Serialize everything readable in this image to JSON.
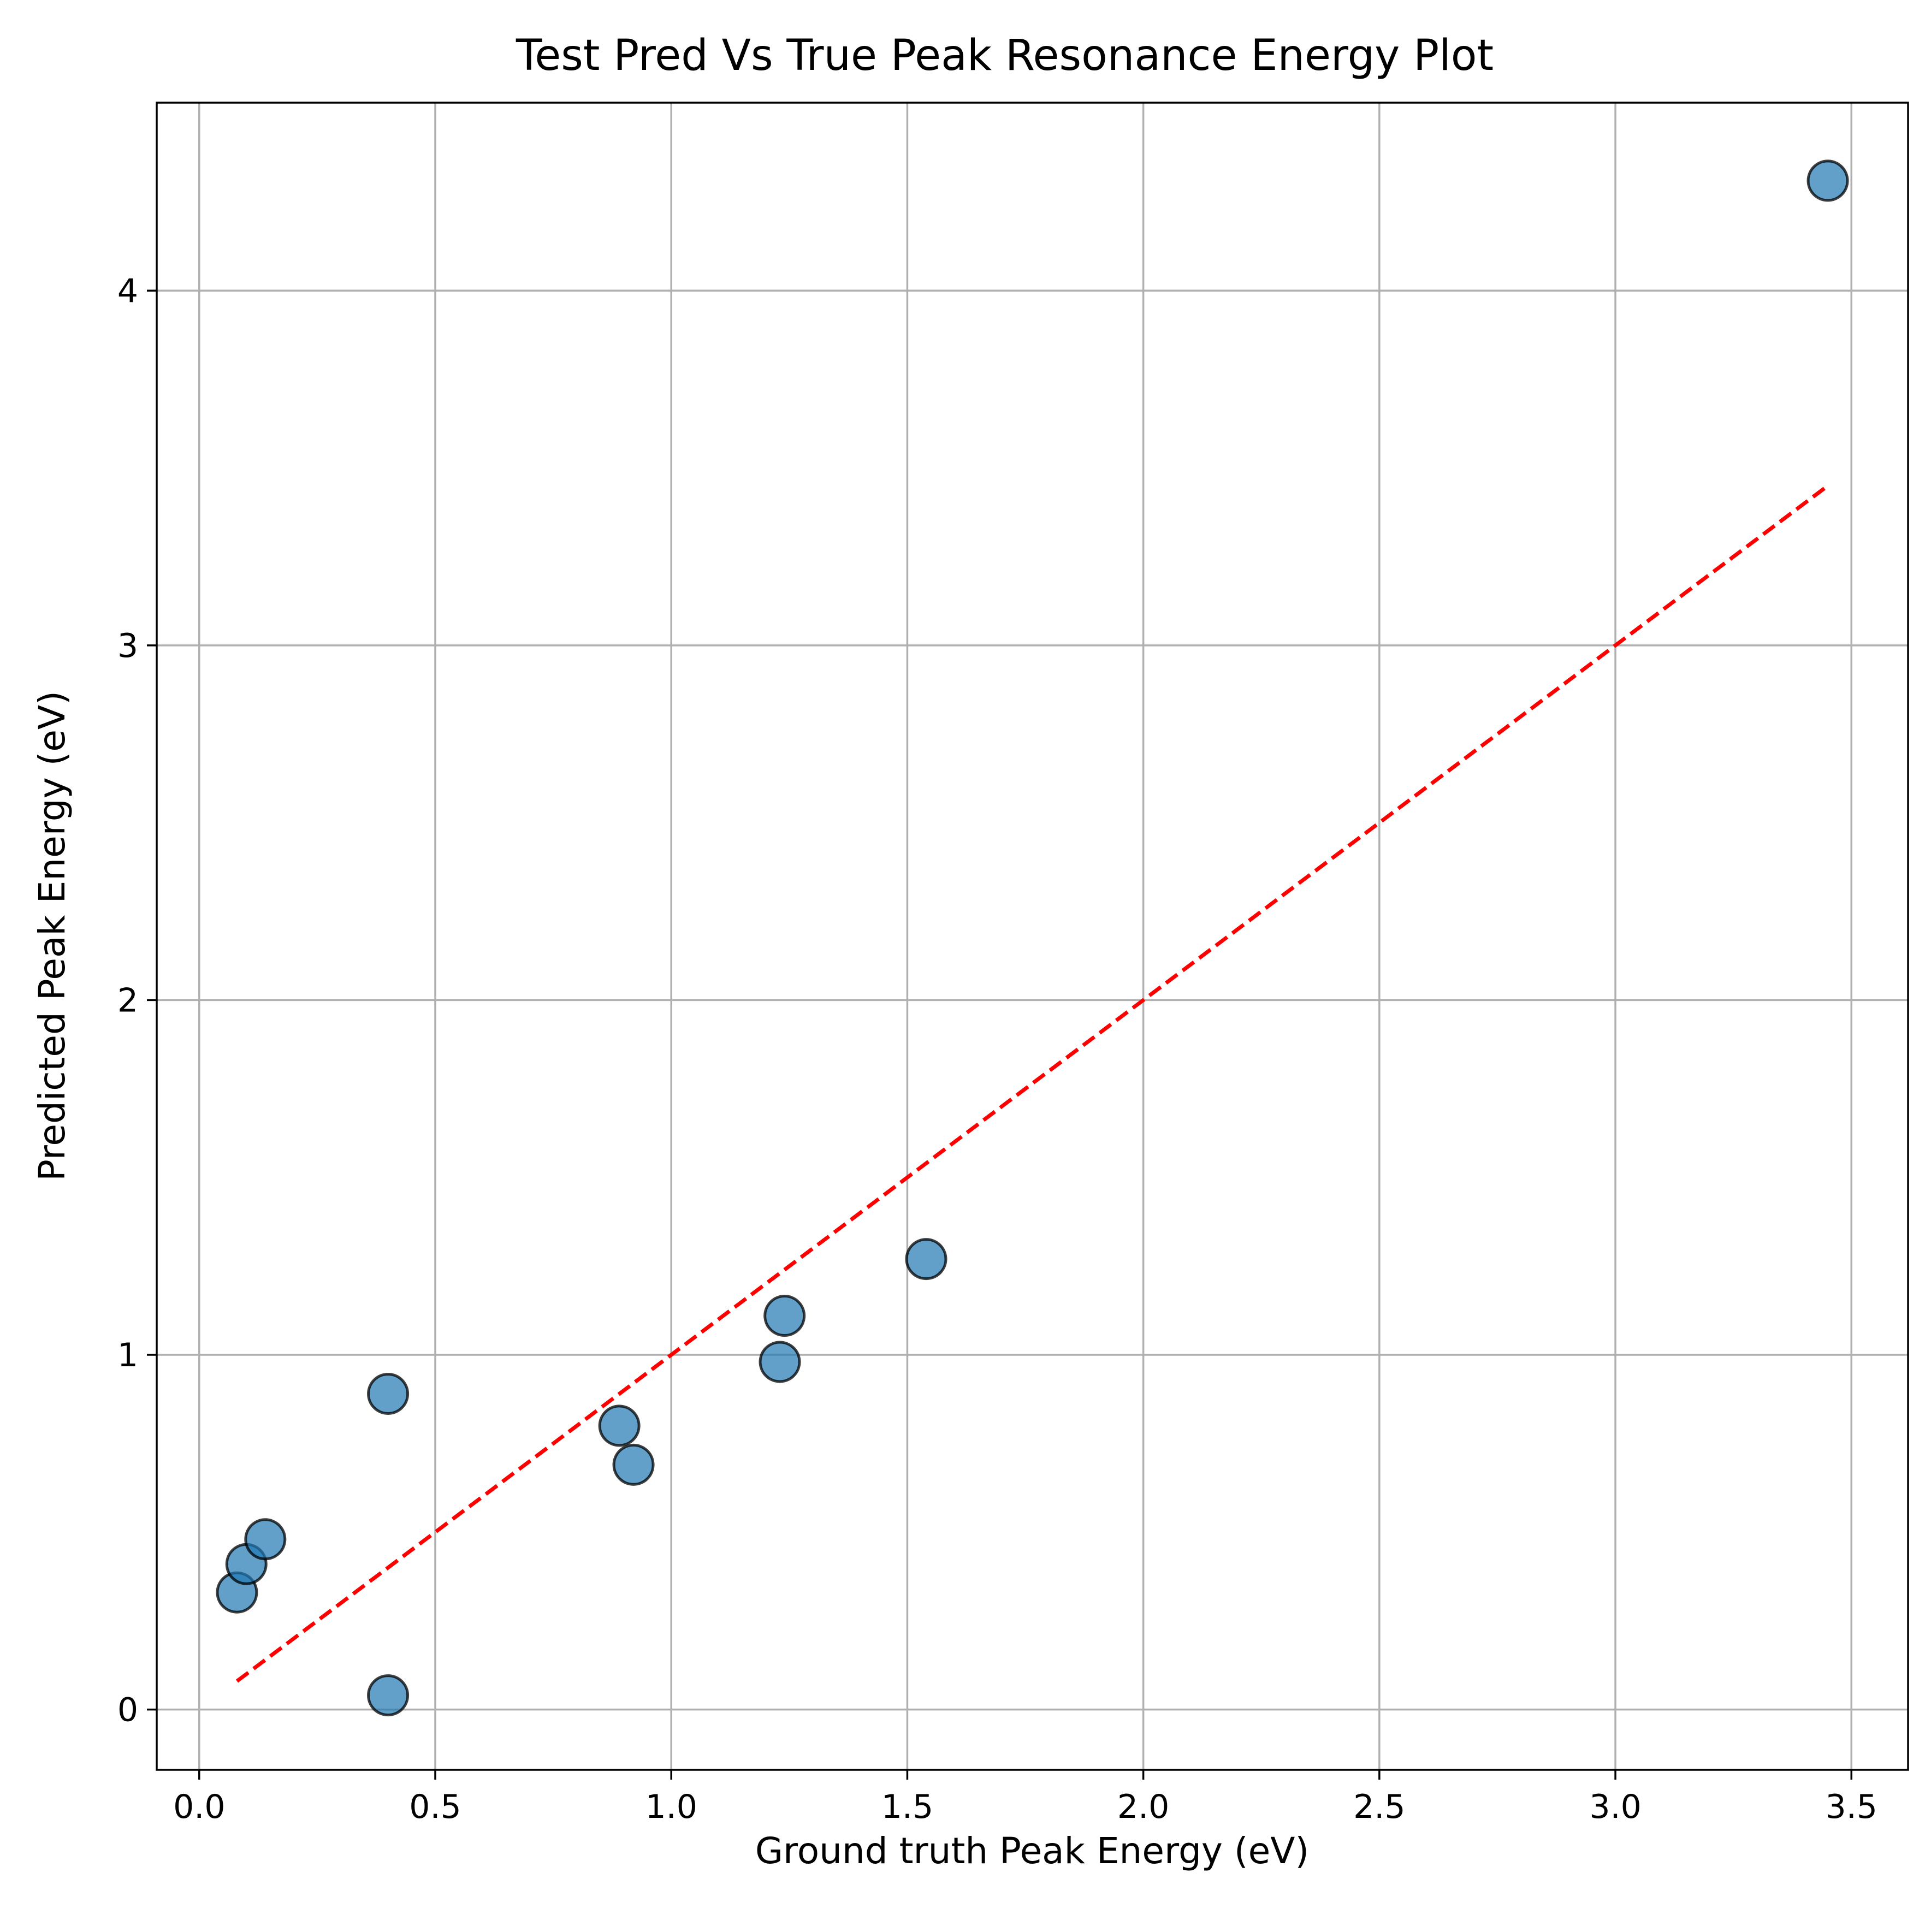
{
  "chart_data": {
    "type": "scatter",
    "title": "Test Pred Vs True Peak Resonance Energy Plot",
    "xlabel": "Ground truth Peak Energy (eV)",
    "ylabel": "Predicted Peak Energy (eV)",
    "xlim": [
      -0.09,
      3.62
    ],
    "ylim": [
      -0.17,
      4.53
    ],
    "xticks": [
      0.0,
      0.5,
      1.0,
      1.5,
      2.0,
      2.5,
      3.0,
      3.5
    ],
    "xtick_labels": [
      "0.0",
      "0.5",
      "1.0",
      "1.5",
      "2.0",
      "2.5",
      "3.0",
      "3.5"
    ],
    "yticks": [
      0,
      1,
      2,
      3,
      4
    ],
    "ytick_labels": [
      "0",
      "1",
      "2",
      "3",
      "4"
    ],
    "grid": true,
    "points": [
      {
        "x": 0.08,
        "y": 0.33
      },
      {
        "x": 0.1,
        "y": 0.41
      },
      {
        "x": 0.14,
        "y": 0.48
      },
      {
        "x": 0.4,
        "y": 0.89
      },
      {
        "x": 0.4,
        "y": 0.04
      },
      {
        "x": 0.89,
        "y": 0.8
      },
      {
        "x": 0.92,
        "y": 0.69
      },
      {
        "x": 1.23,
        "y": 0.98
      },
      {
        "x": 1.24,
        "y": 1.11
      },
      {
        "x": 1.54,
        "y": 1.27
      },
      {
        "x": 3.45,
        "y": 4.31
      }
    ],
    "reference_line": {
      "x": [
        0.08,
        3.45
      ],
      "y": [
        0.08,
        3.45
      ]
    },
    "colors": {
      "points_fill": "#1f77b4",
      "points_edge": "#000000",
      "reference_line": "#ff0000"
    }
  }
}
